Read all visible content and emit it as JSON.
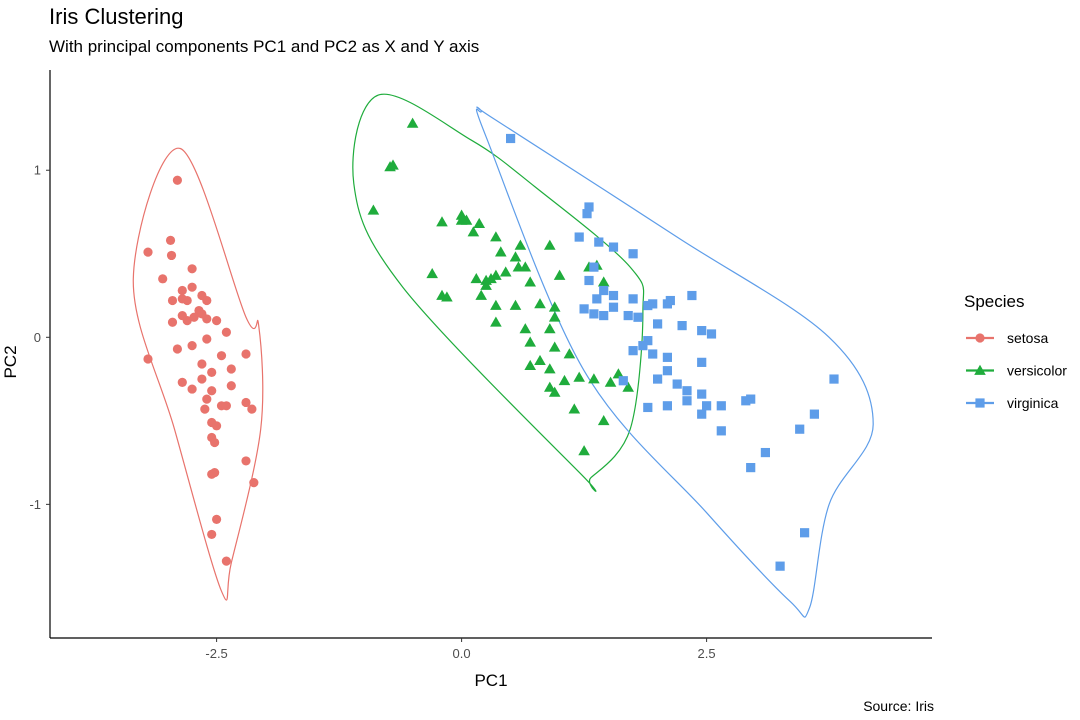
{
  "chart_data": {
    "type": "scatter",
    "title": "Iris Clustering",
    "subtitle": "With principal components PC1 and PC2 as X and Y axis",
    "caption": "Source: Iris",
    "xlabel": "PC1",
    "ylabel": "PC2",
    "xlim": [
      -4.2,
      4.8
    ],
    "ylim": [
      -1.8,
      1.6
    ],
    "xticks": [
      -2.5,
      0.0,
      2.5
    ],
    "xtick_labels": [
      "-2.5",
      "0.0",
      "2.5"
    ],
    "yticks": [
      -1,
      0,
      1
    ],
    "ytick_labels": [
      "-1",
      "0",
      "1"
    ],
    "grid": false,
    "legend": {
      "title": "Species",
      "position": "right"
    },
    "series": [
      {
        "name": "setosa",
        "color": "#e8736c",
        "marker": "circle",
        "points": [
          [
            -2.9,
            0.94
          ],
          [
            -3.2,
            0.51
          ],
          [
            -2.97,
            0.58
          ],
          [
            -2.96,
            0.49
          ],
          [
            -3.05,
            0.35
          ],
          [
            -2.75,
            0.41
          ],
          [
            -2.85,
            0.28
          ],
          [
            -2.75,
            0.3
          ],
          [
            -2.65,
            0.25
          ],
          [
            -2.95,
            0.22
          ],
          [
            -2.85,
            0.23
          ],
          [
            -2.8,
            0.22
          ],
          [
            -2.6,
            0.22
          ],
          [
            -2.68,
            0.16
          ],
          [
            -2.85,
            0.13
          ],
          [
            -2.73,
            0.12
          ],
          [
            -2.65,
            0.14
          ],
          [
            -2.5,
            0.1
          ],
          [
            -2.6,
            0.11
          ],
          [
            -2.8,
            0.1
          ],
          [
            -2.95,
            0.09
          ],
          [
            -2.4,
            0.03
          ],
          [
            -2.6,
            -0.01
          ],
          [
            -2.75,
            -0.05
          ],
          [
            -2.9,
            -0.07
          ],
          [
            -2.2,
            -0.1
          ],
          [
            -2.45,
            -0.11
          ],
          [
            -3.2,
            -0.13
          ],
          [
            -2.65,
            -0.16
          ],
          [
            -2.35,
            -0.19
          ],
          [
            -2.55,
            -0.21
          ],
          [
            -2.85,
            -0.27
          ],
          [
            -2.65,
            -0.25
          ],
          [
            -2.75,
            -0.31
          ],
          [
            -2.55,
            -0.32
          ],
          [
            -2.35,
            -0.29
          ],
          [
            -2.6,
            -0.37
          ],
          [
            -2.2,
            -0.39
          ],
          [
            -2.45,
            -0.41
          ],
          [
            -2.62,
            -0.43
          ],
          [
            -2.4,
            -0.41
          ],
          [
            -2.14,
            -0.43
          ],
          [
            -2.55,
            -0.51
          ],
          [
            -2.5,
            -0.53
          ],
          [
            -2.55,
            -0.6
          ],
          [
            -2.52,
            -0.63
          ],
          [
            -2.2,
            -0.74
          ],
          [
            -2.52,
            -0.81
          ],
          [
            -2.55,
            -0.82
          ],
          [
            -2.12,
            -0.87
          ],
          [
            -2.5,
            -1.09
          ],
          [
            -2.55,
            -1.18
          ],
          [
            -2.4,
            -1.34
          ]
        ]
      },
      {
        "name": "versicolor",
        "color": "#1fac3c",
        "marker": "triangle",
        "points": [
          [
            -0.5,
            1.28
          ],
          [
            -0.73,
            1.02
          ],
          [
            -0.7,
            1.03
          ],
          [
            -0.9,
            0.76
          ],
          [
            0.0,
            0.7
          ],
          [
            -0.2,
            0.69
          ],
          [
            0.12,
            0.63
          ],
          [
            0.05,
            0.7
          ],
          [
            0.0,
            0.73
          ],
          [
            0.18,
            0.68
          ],
          [
            0.35,
            0.6
          ],
          [
            0.6,
            0.55
          ],
          [
            0.4,
            0.51
          ],
          [
            0.55,
            0.48
          ],
          [
            0.58,
            0.42
          ],
          [
            0.3,
            0.35
          ],
          [
            0.25,
            0.34
          ],
          [
            0.35,
            0.37
          ],
          [
            0.45,
            0.39
          ],
          [
            0.7,
            0.33
          ],
          [
            0.65,
            0.42
          ],
          [
            0.9,
            0.55
          ],
          [
            1.3,
            0.42
          ],
          [
            1.45,
            0.33
          ],
          [
            -0.3,
            0.38
          ],
          [
            -0.2,
            0.25
          ],
          [
            0.2,
            0.25
          ],
          [
            0.15,
            0.35
          ],
          [
            0.25,
            0.31
          ],
          [
            0.35,
            0.19
          ],
          [
            0.55,
            0.19
          ],
          [
            0.8,
            0.2
          ],
          [
            0.95,
            0.18
          ],
          [
            0.95,
            0.12
          ],
          [
            0.9,
            0.05
          ],
          [
            0.65,
            0.05
          ],
          [
            0.35,
            0.09
          ],
          [
            -0.15,
            0.24
          ],
          [
            1.0,
            0.37
          ],
          [
            1.38,
            0.43
          ],
          [
            0.7,
            -0.03
          ],
          [
            0.95,
            -0.06
          ],
          [
            1.1,
            -0.1
          ],
          [
            0.8,
            -0.14
          ],
          [
            0.7,
            -0.17
          ],
          [
            0.9,
            -0.19
          ],
          [
            1.2,
            -0.24
          ],
          [
            1.05,
            -0.26
          ],
          [
            1.35,
            -0.25
          ],
          [
            1.52,
            -0.27
          ],
          [
            0.9,
            -0.3
          ],
          [
            0.95,
            -0.33
          ],
          [
            1.15,
            -0.43
          ],
          [
            1.45,
            -0.5
          ],
          [
            1.25,
            -0.68
          ],
          [
            1.7,
            -0.3
          ],
          [
            1.6,
            -0.22
          ]
        ]
      },
      {
        "name": "virginica",
        "color": "#5e9de9",
        "marker": "square",
        "points": [
          [
            0.5,
            1.19
          ],
          [
            1.3,
            0.78
          ],
          [
            1.28,
            0.74
          ],
          [
            1.2,
            0.6
          ],
          [
            1.4,
            0.57
          ],
          [
            1.55,
            0.54
          ],
          [
            1.75,
            0.5
          ],
          [
            1.35,
            0.42
          ],
          [
            1.3,
            0.34
          ],
          [
            1.45,
            0.28
          ],
          [
            1.38,
            0.23
          ],
          [
            1.55,
            0.25
          ],
          [
            1.75,
            0.23
          ],
          [
            1.95,
            0.2
          ],
          [
            2.1,
            0.2
          ],
          [
            2.13,
            0.22
          ],
          [
            2.35,
            0.25
          ],
          [
            1.25,
            0.17
          ],
          [
            1.35,
            0.14
          ],
          [
            1.45,
            0.13
          ],
          [
            1.55,
            0.18
          ],
          [
            1.7,
            0.13
          ],
          [
            1.9,
            0.19
          ],
          [
            1.8,
            0.12
          ],
          [
            2.0,
            0.08
          ],
          [
            2.25,
            0.07
          ],
          [
            2.45,
            0.04
          ],
          [
            2.55,
            0.02
          ],
          [
            1.9,
            -0.02
          ],
          [
            1.85,
            -0.05
          ],
          [
            1.75,
            -0.08
          ],
          [
            1.95,
            -0.1
          ],
          [
            2.1,
            -0.12
          ],
          [
            2.45,
            -0.15
          ],
          [
            2.1,
            -0.2
          ],
          [
            1.65,
            -0.26
          ],
          [
            2.0,
            -0.25
          ],
          [
            2.2,
            -0.28
          ],
          [
            2.3,
            -0.32
          ],
          [
            2.45,
            -0.34
          ],
          [
            2.3,
            -0.38
          ],
          [
            2.5,
            -0.41
          ],
          [
            2.65,
            -0.41
          ],
          [
            2.9,
            -0.38
          ],
          [
            2.95,
            -0.37
          ],
          [
            2.1,
            -0.41
          ],
          [
            1.9,
            -0.42
          ],
          [
            2.45,
            -0.46
          ],
          [
            3.6,
            -0.46
          ],
          [
            3.45,
            -0.55
          ],
          [
            2.65,
            -0.56
          ],
          [
            3.8,
            -0.25
          ],
          [
            3.1,
            -0.69
          ],
          [
            2.95,
            -0.78
          ],
          [
            3.5,
            -1.17
          ],
          [
            3.25,
            -1.37
          ]
        ]
      }
    ]
  },
  "hulls": [
    {
      "name": "setosa-ellipse",
      "color": "#e8736c",
      "points": [
        [
          -2.87,
          1.13
        ],
        [
          -3.35,
          0.35
        ],
        [
          -2.93,
          -0.55
        ],
        [
          -2.45,
          -1.52
        ],
        [
          -2.35,
          -1.35
        ],
        [
          -2.05,
          -0.55
        ],
        [
          -2.07,
          0.07
        ],
        [
          -2.2,
          0.12
        ]
      ]
    },
    {
      "name": "versicolor-ellipse",
      "color": "#1fac3c",
      "points": [
        [
          -0.85,
          1.45
        ],
        [
          -1.1,
          0.92
        ],
        [
          -0.6,
          0.3
        ],
        [
          1.22,
          -0.82
        ],
        [
          1.32,
          -0.84
        ],
        [
          1.72,
          -0.55
        ],
        [
          1.85,
          0.15
        ],
        [
          1.72,
          0.42
        ],
        [
          0.75,
          0.9
        ],
        [
          0.1,
          1.18
        ]
      ]
    },
    {
      "name": "virginica-ellipse",
      "color": "#5e9de9",
      "points": [
        [
          0.2,
          1.35
        ],
        [
          0.35,
          1.3
        ],
        [
          2.2,
          0.6
        ],
        [
          3.75,
          0.0
        ],
        [
          4.2,
          -0.52
        ],
        [
          3.75,
          -1.0
        ],
        [
          3.55,
          -1.62
        ],
        [
          3.35,
          -1.58
        ],
        [
          2.5,
          -1.05
        ],
        [
          1.25,
          -0.2
        ],
        [
          0.25,
          1.2
        ]
      ]
    }
  ]
}
